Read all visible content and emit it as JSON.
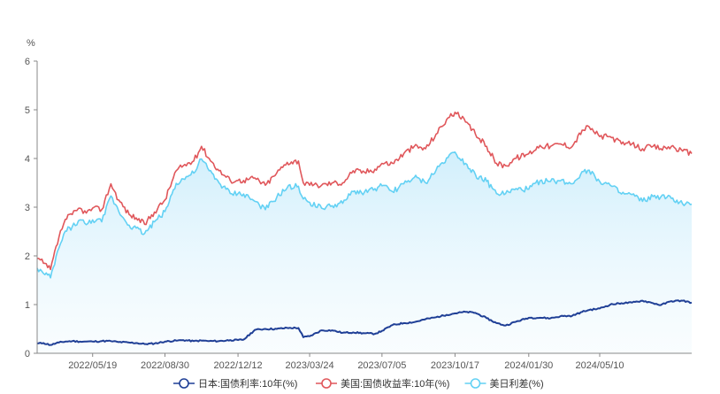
{
  "chart_data": {
    "type": "area",
    "title": "",
    "xlabel": "",
    "ylabel": "%",
    "ylim": [
      0,
      6
    ],
    "yticks": [
      "0",
      "1",
      "2",
      "3",
      "4",
      "5",
      "6"
    ],
    "xticks": [
      "2022/05/19",
      "2022/08/30",
      "2022/12/12",
      "2023/03/24",
      "2023/07/05",
      "2023/10/17",
      "2024/01/30",
      "2024/05/10"
    ],
    "x": [
      "2022/03/01",
      "2022/03/10",
      "2022/03/20",
      "2022/04/01",
      "2022/04/10",
      "2022/04/20",
      "2022/05/01",
      "2022/05/10",
      "2022/05/19",
      "2022/06/01",
      "2022/06/14",
      "2022/06/25",
      "2022/07/10",
      "2022/07/20",
      "2022/08/01",
      "2022/08/15",
      "2022/08/30",
      "2022/09/15",
      "2022/09/25",
      "2022/10/10",
      "2022/10/21",
      "2022/11/01",
      "2022/11/15",
      "2022/12/01",
      "2022/12/12",
      "2022/12/20",
      "2023/01/05",
      "2023/01/20",
      "2023/02/05",
      "2023/02/20",
      "2023/03/08",
      "2023/03/15",
      "2023/03/24",
      "2023/04/10",
      "2023/04/25",
      "2023/05/10",
      "2023/05/25",
      "2023/06/10",
      "2023/06/25",
      "2023/07/05",
      "2023/07/20",
      "2023/08/05",
      "2023/08/20",
      "2023/09/05",
      "2023/09/20",
      "2023/10/05",
      "2023/10/17",
      "2023/11/01",
      "2023/11/15",
      "2023/12/01",
      "2023/12/15",
      "2023/12/28",
      "2024/01/10",
      "2024/01/30",
      "2024/02/15",
      "2024/03/01",
      "2024/03/15",
      "2024/04/01",
      "2024/04/15",
      "2024/04/25",
      "2024/05/10",
      "2024/05/25",
      "2024/06/10",
      "2024/06/25",
      "2024/07/10",
      "2024/07/25",
      "2024/08/05",
      "2024/08/20",
      "2024/09/05",
      "2024/09/18"
    ],
    "series": [
      {
        "name": "日本:国债利率:10年(%)",
        "color": "#1f3f96",
        "values": [
          0.2,
          0.21,
          0.17,
          0.22,
          0.24,
          0.25,
          0.24,
          0.24,
          0.24,
          0.25,
          0.25,
          0.23,
          0.22,
          0.21,
          0.19,
          0.2,
          0.24,
          0.26,
          0.27,
          0.25,
          0.26,
          0.25,
          0.25,
          0.27,
          0.27,
          0.28,
          0.48,
          0.5,
          0.5,
          0.52,
          0.52,
          0.33,
          0.35,
          0.47,
          0.47,
          0.42,
          0.43,
          0.41,
          0.4,
          0.46,
          0.58,
          0.62,
          0.64,
          0.7,
          0.74,
          0.79,
          0.82,
          0.85,
          0.83,
          0.72,
          0.62,
          0.57,
          0.64,
          0.73,
          0.73,
          0.72,
          0.76,
          0.77,
          0.85,
          0.89,
          0.92,
          1.0,
          1.03,
          1.04,
          1.08,
          1.03,
          0.99,
          1.07,
          1.08,
          1.04
        ]
      },
      {
        "name": "美国:国债收益率:10年(%)",
        "color": "#e0575b",
        "values": [
          1.95,
          1.85,
          1.72,
          2.38,
          2.75,
          2.85,
          2.98,
          2.88,
          2.98,
          2.95,
          3.48,
          3.15,
          2.85,
          2.78,
          2.65,
          2.9,
          3.15,
          3.75,
          3.85,
          3.95,
          4.25,
          4.0,
          3.75,
          3.55,
          3.55,
          3.55,
          3.6,
          3.45,
          3.7,
          3.92,
          3.95,
          3.5,
          3.45,
          3.45,
          3.5,
          3.5,
          3.75,
          3.72,
          3.78,
          3.9,
          3.9,
          4.1,
          4.25,
          4.2,
          4.5,
          4.8,
          4.95,
          4.75,
          4.5,
          4.25,
          3.9,
          3.85,
          4.0,
          4.1,
          4.27,
          4.25,
          4.3,
          4.25,
          4.58,
          4.65,
          4.45,
          4.45,
          4.3,
          4.3,
          4.2,
          4.25,
          4.2,
          4.25,
          4.15,
          4.1
        ]
      },
      {
        "name": "美日利差(%)",
        "color": "#63d1f4",
        "values": [
          1.75,
          1.64,
          1.55,
          2.16,
          2.51,
          2.6,
          2.74,
          2.64,
          2.74,
          2.7,
          3.23,
          2.92,
          2.63,
          2.57,
          2.46,
          2.7,
          2.91,
          3.49,
          3.58,
          3.7,
          3.99,
          3.75,
          3.5,
          3.28,
          3.28,
          3.27,
          3.12,
          2.95,
          3.2,
          3.4,
          3.43,
          3.17,
          3.1,
          2.98,
          3.03,
          3.08,
          3.32,
          3.31,
          3.38,
          3.44,
          3.32,
          3.48,
          3.61,
          3.5,
          3.76,
          4.01,
          4.13,
          3.9,
          3.67,
          3.53,
          3.28,
          3.28,
          3.36,
          3.37,
          3.54,
          3.53,
          3.54,
          3.48,
          3.73,
          3.76,
          3.53,
          3.45,
          3.27,
          3.26,
          3.12,
          3.22,
          3.21,
          3.18,
          3.07,
          3.06
        ]
      }
    ],
    "grid": false,
    "legend": "bottom"
  }
}
